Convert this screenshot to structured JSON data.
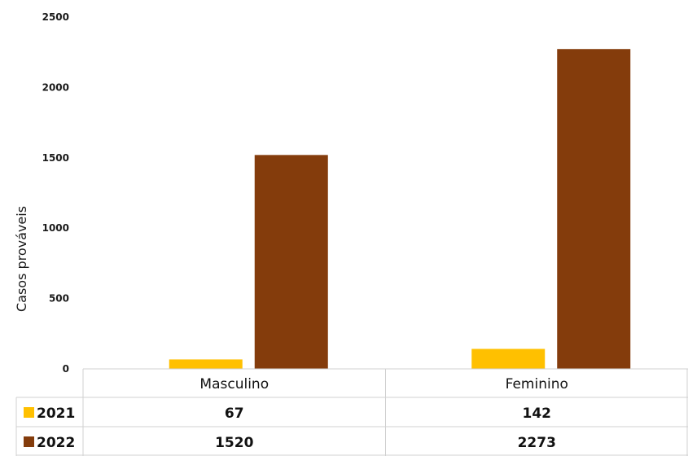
{
  "chart_data": {
    "type": "bar",
    "ylabel": "Casos prováveis",
    "ylim": [
      0,
      2500
    ],
    "yticks": [
      0,
      500,
      1000,
      1500,
      2000,
      2500
    ],
    "categories": [
      "Masculino",
      "Feminino"
    ],
    "series": [
      {
        "name": "2021",
        "color": "#FFC000",
        "values": [
          67,
          142
        ]
      },
      {
        "name": "2022",
        "color": "#843C0C",
        "values": [
          1520,
          2273
        ]
      }
    ],
    "data_table": true,
    "grid": false
  }
}
